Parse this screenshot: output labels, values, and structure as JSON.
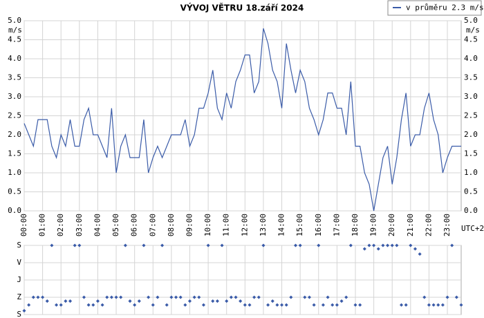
{
  "chart_data": [
    {
      "type": "line",
      "title": "VÝVOJ VĚTRU  18.září 2024",
      "y_label": "m/s",
      "x_note": "UTC+2",
      "categories": [
        "00:00",
        null,
        null,
        null,
        "01:00",
        null,
        null,
        null,
        "02:00",
        null,
        null,
        null,
        "03:00",
        null,
        null,
        null,
        "04:00",
        null,
        null,
        null,
        "05:00",
        null,
        null,
        null,
        "06:00",
        null,
        null,
        null,
        "07:00",
        null,
        null,
        null,
        "08:00",
        null,
        null,
        null,
        "09:00",
        null,
        null,
        null,
        "10:00",
        null,
        null,
        null,
        "11:00",
        null,
        null,
        null,
        "12:00",
        null,
        null,
        null,
        "13:00",
        null,
        null,
        null,
        "14:00",
        null,
        null,
        null,
        "15:00",
        null,
        null,
        null,
        "16:00",
        null,
        null,
        null,
        "17:00",
        null,
        null,
        null,
        "18:00",
        null,
        null,
        null,
        "19:00",
        null,
        null,
        null,
        "20:00",
        null,
        null,
        null,
        "21:00",
        null,
        null,
        null,
        "22:00",
        null,
        null,
        null,
        "23:00",
        null,
        null,
        null
      ],
      "series": [
        {
          "name": "v průměru 2.3 m/s",
          "color": "#3a5ba8",
          "values": [
            2.3,
            2.0,
            1.7,
            2.4,
            2.4,
            2.4,
            1.7,
            1.4,
            2.0,
            1.7,
            2.4,
            1.7,
            1.7,
            2.4,
            2.7,
            2.0,
            2.0,
            1.7,
            1.4,
            2.7,
            1.0,
            1.7,
            2.0,
            1.4,
            1.4,
            1.4,
            2.4,
            1.0,
            1.4,
            1.7,
            1.4,
            1.7,
            2.0,
            2.0,
            2.0,
            2.4,
            1.7,
            2.0,
            2.7,
            2.7,
            3.1,
            3.7,
            2.7,
            2.4,
            3.1,
            2.7,
            3.4,
            3.7,
            4.1,
            4.1,
            3.1,
            3.4,
            4.8,
            4.4,
            3.7,
            3.4,
            2.7,
            4.4,
            3.7,
            3.1,
            3.7,
            3.4,
            2.7,
            2.4,
            2.0,
            2.4,
            3.1,
            3.1,
            2.7,
            2.7,
            2.0,
            3.4,
            1.7,
            1.7,
            1.0,
            0.7,
            0.0,
            0.7,
            1.4,
            1.7,
            0.7,
            1.4,
            2.4,
            3.1,
            1.7,
            2.0,
            2.0,
            2.7,
            3.1,
            2.4,
            2.0,
            1.0,
            1.4,
            1.7,
            1.7,
            1.7
          ]
        }
      ],
      "ylim": [
        0,
        5
      ],
      "yticks": [
        {
          "value": 0,
          "label": "0.0"
        },
        {
          "value": 0.5,
          "label": "0.5"
        },
        {
          "value": 1,
          "label": "1.0"
        },
        {
          "value": 1.5,
          "label": "1.5"
        },
        {
          "value": 2,
          "label": "2.0"
        },
        {
          "value": 2.5,
          "label": "2.5"
        },
        {
          "value": 3,
          "label": "3.0"
        },
        {
          "value": 3.5,
          "label": "3.5"
        },
        {
          "value": 4,
          "label": "4.0"
        },
        {
          "value": 4.5,
          "label": "4.5"
        },
        {
          "value": 5,
          "label": "5.0"
        }
      ],
      "grid": true,
      "legend": "top-right"
    },
    {
      "type": "scatter",
      "color": "#3a5ba8",
      "ylim": [
        0,
        360
      ],
      "inverted": true,
      "yticks": [
        {
          "value": 0,
          "label": "S"
        },
        {
          "value": 90,
          "label": "V"
        },
        {
          "value": 180,
          "label": "J"
        },
        {
          "value": 270,
          "label": "Z"
        },
        {
          "value": 360,
          "label": "S"
        }
      ],
      "values": [
        340,
        310,
        270,
        270,
        270,
        290,
        0,
        310,
        310,
        290,
        290,
        0,
        0,
        270,
        310,
        310,
        290,
        310,
        270,
        270,
        270,
        270,
        0,
        290,
        310,
        290,
        0,
        270,
        310,
        270,
        0,
        310,
        270,
        270,
        270,
        310,
        290,
        270,
        270,
        310,
        0,
        290,
        290,
        0,
        290,
        270,
        270,
        290,
        310,
        310,
        270,
        270,
        0,
        310,
        290,
        310,
        310,
        310,
        270,
        0,
        0,
        270,
        270,
        310,
        0,
        310,
        270,
        310,
        310,
        290,
        270,
        0,
        310,
        310,
        18,
        0,
        0,
        18,
        0,
        0,
        0,
        0,
        310,
        310,
        0,
        18,
        45,
        270,
        310,
        310,
        310,
        310,
        270,
        0,
        270,
        310
      ],
      "grid": true
    }
  ]
}
